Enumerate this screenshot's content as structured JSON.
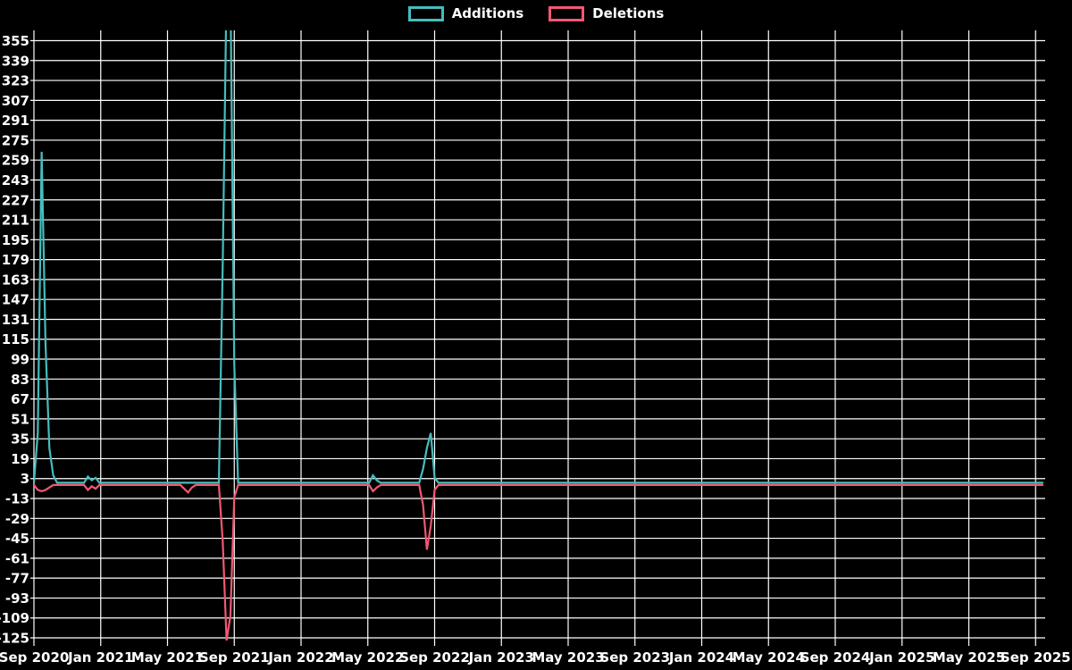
{
  "legend": {
    "items": [
      {
        "label": "Additions",
        "color": "#46bdbd"
      },
      {
        "label": "Deletions",
        "color": "#f25872"
      }
    ]
  },
  "chart_data": {
    "type": "line",
    "title": "",
    "xlabel": "",
    "ylabel": "",
    "background_color": "#000000",
    "grid_color": "#ffffff",
    "text_color": "#ffffff",
    "grid": true,
    "legend_position": "top-center",
    "x_tick_labels": [
      "Sep 2020",
      "Jan 2021",
      "May 2021",
      "Sep 2021",
      "Jan 2022",
      "May 2022",
      "Sep 2022",
      "Jan 2023",
      "May 2023",
      "Sep 2023",
      "Jan 2024",
      "May 2024",
      "Sep 2024",
      "Jan 2025",
      "May 2025",
      "Sep 2025"
    ],
    "y_tick_labels": [
      355,
      339,
      323,
      307,
      291,
      275,
      259,
      243,
      227,
      211,
      195,
      179,
      163,
      147,
      131,
      115,
      99,
      83,
      67,
      51,
      35,
      19,
      3,
      -13,
      -29,
      -45,
      -61,
      -77,
      -93,
      -109,
      -125
    ],
    "ylim": [
      -125,
      355
    ],
    "y_tick_step": 16,
    "x_unit": "week",
    "weeks_total": 263,
    "baseline_value": 0,
    "series": [
      {
        "name": "Additions",
        "color": "#46bdbd",
        "default_value": 0,
        "points": [
          {
            "week": 1,
            "value": 40
          },
          {
            "week": 2,
            "value": 266
          },
          {
            "week": 3,
            "value": 112
          },
          {
            "week": 4,
            "value": 28
          },
          {
            "week": 5,
            "value": 6
          },
          {
            "week": 14,
            "value": 5
          },
          {
            "week": 15,
            "value": 2
          },
          {
            "week": 16,
            "value": 4
          },
          {
            "week": 49,
            "value": 175
          },
          {
            "week": 50,
            "value": 400
          },
          {
            "week": 51,
            "value": 400
          },
          {
            "week": 52,
            "value": 95
          },
          {
            "week": 88,
            "value": 6
          },
          {
            "week": 89,
            "value": 2
          },
          {
            "week": 101,
            "value": 11
          },
          {
            "week": 102,
            "value": 28
          },
          {
            "week": 103,
            "value": 40
          },
          {
            "week": 104,
            "value": 4
          }
        ]
      },
      {
        "name": "Deletions",
        "color": "#f25872",
        "default_value": 0,
        "points": [
          {
            "week": 1,
            "value": -4
          },
          {
            "week": 2,
            "value": -5
          },
          {
            "week": 3,
            "value": -4
          },
          {
            "week": 4,
            "value": -2
          },
          {
            "week": 14,
            "value": -4
          },
          {
            "week": 15,
            "value": -1
          },
          {
            "week": 16,
            "value": -3
          },
          {
            "week": 39,
            "value": -3
          },
          {
            "week": 40,
            "value": -6
          },
          {
            "week": 41,
            "value": -2
          },
          {
            "week": 49,
            "value": -45
          },
          {
            "week": 50,
            "value": -125
          },
          {
            "week": 51,
            "value": -105
          },
          {
            "week": 52,
            "value": -10
          },
          {
            "week": 88,
            "value": -5
          },
          {
            "week": 89,
            "value": -2
          },
          {
            "week": 101,
            "value": -16
          },
          {
            "week": 102,
            "value": -52
          },
          {
            "week": 103,
            "value": -33
          },
          {
            "week": 104,
            "value": -4
          }
        ]
      }
    ],
    "notes": "Additions spike near Sep 2021 exceeds the y-axis maximum (355) and is clipped at the top of the plot area."
  }
}
